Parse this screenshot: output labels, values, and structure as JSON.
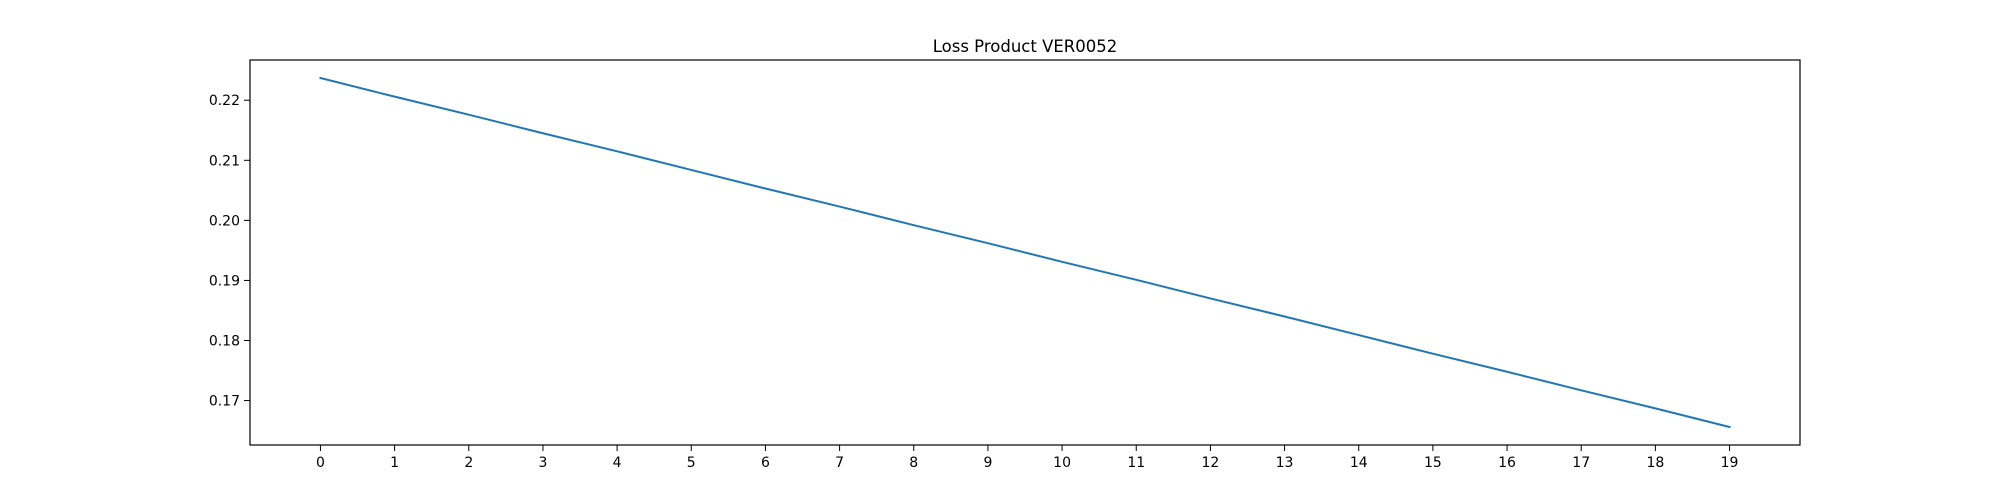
{
  "chart_data": {
    "type": "line",
    "title": "Loss Product VER0052",
    "xlabel": "",
    "ylabel": "",
    "x": [
      0,
      1,
      2,
      3,
      4,
      5,
      6,
      7,
      8,
      9,
      10,
      11,
      12,
      13,
      14,
      15,
      16,
      17,
      18,
      19
    ],
    "series": [
      {
        "color": "#1f77b4",
        "values": [
          0.2237,
          0.2206,
          0.2176,
          0.2145,
          0.2115,
          0.2084,
          0.2053,
          0.2023,
          0.1992,
          0.1962,
          0.1931,
          0.1901,
          0.187,
          0.184,
          0.1809,
          0.1778,
          0.1748,
          0.1717,
          0.1687,
          0.1656
        ]
      }
    ],
    "xlim": [
      -0.95,
      19.95
    ],
    "ylim": [
      0.1626,
      0.2267
    ],
    "x_ticks": [
      0,
      1,
      2,
      3,
      4,
      5,
      6,
      7,
      8,
      9,
      10,
      11,
      12,
      13,
      14,
      15,
      16,
      17,
      18,
      19
    ],
    "x_tick_labels": [
      "0",
      "1",
      "2",
      "3",
      "4",
      "5",
      "6",
      "7",
      "8",
      "9",
      "10",
      "11",
      "12",
      "13",
      "14",
      "15",
      "16",
      "17",
      "18",
      "19"
    ],
    "y_ticks": [
      0.17,
      0.18,
      0.19,
      0.2,
      0.21,
      0.22
    ],
    "y_tick_labels": [
      "0.17",
      "0.18",
      "0.19",
      "0.20",
      "0.21",
      "0.22"
    ],
    "grid": false,
    "legend": "none"
  }
}
